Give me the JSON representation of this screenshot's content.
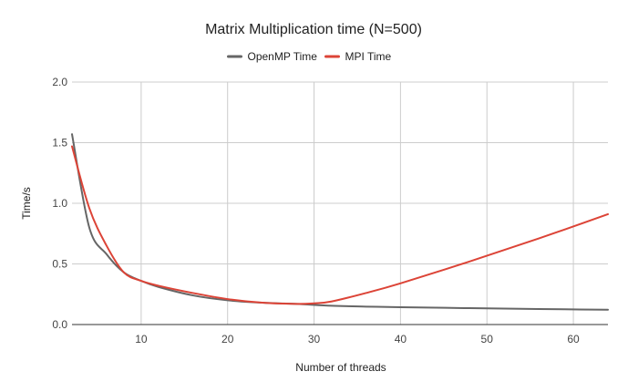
{
  "chart_data": {
    "type": "line",
    "title": "Matrix Multiplication time (N=500)",
    "xlabel": "Number of threads",
    "ylabel": "Time/s",
    "xlim": [
      2,
      64
    ],
    "ylim": [
      0,
      2.0
    ],
    "x_ticks": [
      10,
      20,
      30,
      40,
      50,
      60
    ],
    "y_ticks": [
      0,
      0.5,
      1.0,
      1.5,
      2.0
    ],
    "x_tick_labels": [
      "10",
      "20",
      "30",
      "40",
      "50",
      "60"
    ],
    "y_tick_labels": [
      "0.0",
      "0.5",
      "1.0",
      "1.5",
      "2.0"
    ],
    "grid": true,
    "legend": "top-center",
    "series": [
      {
        "name": "OpenMP Time",
        "color": "#666666",
        "x": [
          2,
          4,
          6,
          8,
          10,
          12,
          16,
          20,
          24,
          28,
          32,
          36,
          40,
          48,
          56,
          64
        ],
        "y": [
          1.57,
          0.8,
          0.58,
          0.43,
          0.36,
          0.31,
          0.24,
          0.2,
          0.18,
          0.17,
          0.155,
          0.148,
          0.143,
          0.135,
          0.128,
          0.122
        ]
      },
      {
        "name": "MPI Time",
        "color": "#dc4437",
        "x": [
          2,
          4,
          6,
          8,
          10,
          12,
          16,
          20,
          24,
          28,
          30,
          32,
          36,
          40,
          48,
          56,
          64
        ],
        "y": [
          1.47,
          0.96,
          0.65,
          0.43,
          0.36,
          0.32,
          0.26,
          0.21,
          0.18,
          0.17,
          0.175,
          0.19,
          0.26,
          0.34,
          0.52,
          0.71,
          0.91
        ]
      }
    ]
  }
}
